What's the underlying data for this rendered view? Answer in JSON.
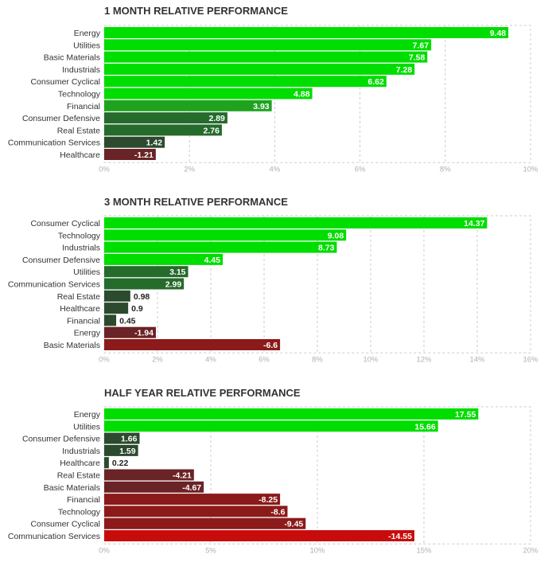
{
  "chart_data": [
    {
      "type": "bar",
      "orientation": "horizontal",
      "title": "1 MONTH RELATIVE PERFORMANCE",
      "categories": [
        "Energy",
        "Utilities",
        "Basic Materials",
        "Industrials",
        "Consumer Cyclical",
        "Technology",
        "Financial",
        "Consumer Defensive",
        "Real Estate",
        "Communication Services",
        "Healthcare"
      ],
      "values": [
        9.48,
        7.67,
        7.58,
        7.28,
        6.62,
        4.88,
        3.93,
        2.89,
        2.76,
        1.42,
        -1.21
      ],
      "value_labels": [
        "9.48",
        "7.67",
        "7.58",
        "7.28",
        "6.62",
        "4.88",
        "3.93",
        "2.89",
        "2.76",
        "1.42",
        "-1.21"
      ],
      "xlim": [
        0,
        10
      ],
      "ticks": [
        0,
        2,
        4,
        6,
        8,
        10
      ],
      "tick_labels": [
        "0%",
        "2%",
        "4%",
        "6%",
        "8%",
        "10%"
      ],
      "grid": true
    },
    {
      "type": "bar",
      "orientation": "horizontal",
      "title": "3 MONTH RELATIVE PERFORMANCE",
      "categories": [
        "Consumer Cyclical",
        "Technology",
        "Industrials",
        "Consumer Defensive",
        "Utilities",
        "Communication Services",
        "Real Estate",
        "Healthcare",
        "Financial",
        "Energy",
        "Basic Materials"
      ],
      "values": [
        14.37,
        9.08,
        8.73,
        4.45,
        3.15,
        2.99,
        0.98,
        0.9,
        0.45,
        -1.94,
        -6.6
      ],
      "value_labels": [
        "14.37",
        "9.08",
        "8.73",
        "4.45",
        "3.15",
        "2.99",
        "0.98",
        "0.9",
        "0.45",
        "-1.94",
        "-6.6"
      ],
      "xlim": [
        0,
        16
      ],
      "ticks": [
        0,
        2,
        4,
        6,
        8,
        10,
        12,
        14,
        16
      ],
      "tick_labels": [
        "0%",
        "2%",
        "4%",
        "6%",
        "8%",
        "10%",
        "12%",
        "14%",
        "16%"
      ],
      "grid": true
    },
    {
      "type": "bar",
      "orientation": "horizontal",
      "title": "HALF YEAR RELATIVE PERFORMANCE",
      "categories": [
        "Energy",
        "Utilities",
        "Consumer Defensive",
        "Industrials",
        "Healthcare",
        "Real Estate",
        "Basic Materials",
        "Financial",
        "Technology",
        "Consumer Cyclical",
        "Communication Services"
      ],
      "values": [
        17.55,
        15.66,
        1.66,
        1.59,
        0.22,
        -4.21,
        -4.67,
        -8.25,
        -8.6,
        -9.45,
        -14.55
      ],
      "value_labels": [
        "17.55",
        "15.66",
        "1.66",
        "1.59",
        "0.22",
        "-4.21",
        "-4.67",
        "-8.25",
        "-8.6",
        "-9.45",
        "-14.55"
      ],
      "xlim": [
        0,
        20
      ],
      "ticks": [
        0,
        5,
        10,
        15,
        20
      ],
      "tick_labels": [
        "0%",
        "5%",
        "10%",
        "15%",
        "20%"
      ],
      "grid": true
    }
  ],
  "colors": {
    "bright_green": "#00dd00",
    "mid_green": "#1fa31f",
    "dark_green": "#256b2c",
    "darkest_green": "#2b4a2e",
    "dark_red": "#6a2326",
    "mid_red": "#8b1a1a",
    "bright_red": "#c80c0c",
    "grid": "#cccccc",
    "category_text": "#333333",
    "tick_text": "#b0b0b0"
  }
}
